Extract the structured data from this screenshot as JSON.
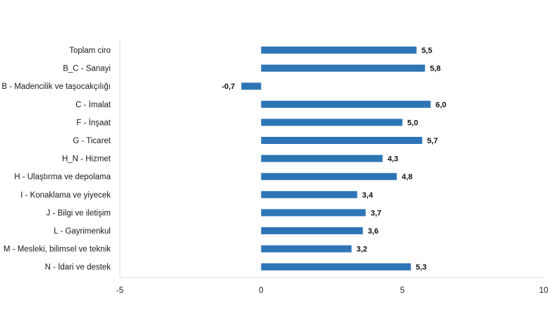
{
  "chart_data": {
    "type": "bar",
    "orientation": "horizontal",
    "categories": [
      "Toplam ciro",
      "B_C - Sanayi",
      "B - Madencilik ve taşocakçılığı",
      "C - İmalat",
      "F - İnşaat",
      "G - Ticaret",
      "H_N - Hizmet",
      "H - Ulaştırma ve depolama",
      "I - Konaklama ve yiyecek",
      "J - Bilgi ve iletişim",
      "L - Gayrimenkul",
      "M - Mesleki, bilimsel ve teknik",
      "N - İdari ve destek"
    ],
    "values": [
      5.5,
      5.8,
      -0.7,
      6.0,
      5.0,
      5.7,
      4.3,
      4.8,
      3.4,
      3.7,
      3.6,
      3.2,
      5.3
    ],
    "data_labels": [
      "5,5",
      "5,8",
      "-0,7",
      "6,0",
      "5,0",
      "5,7",
      "4,3",
      "4,8",
      "3,4",
      "3,7",
      "3,6",
      "3,2",
      "5,3"
    ],
    "xlim": [
      -5,
      10
    ],
    "x_ticks": [
      -5,
      0,
      5,
      10
    ],
    "x_tick_labels": [
      "-5",
      "0",
      "5",
      "10"
    ],
    "grid": false,
    "legend": "none",
    "colors": {
      "bar": "#2E75B6",
      "axis": "#d9d9d9"
    }
  }
}
